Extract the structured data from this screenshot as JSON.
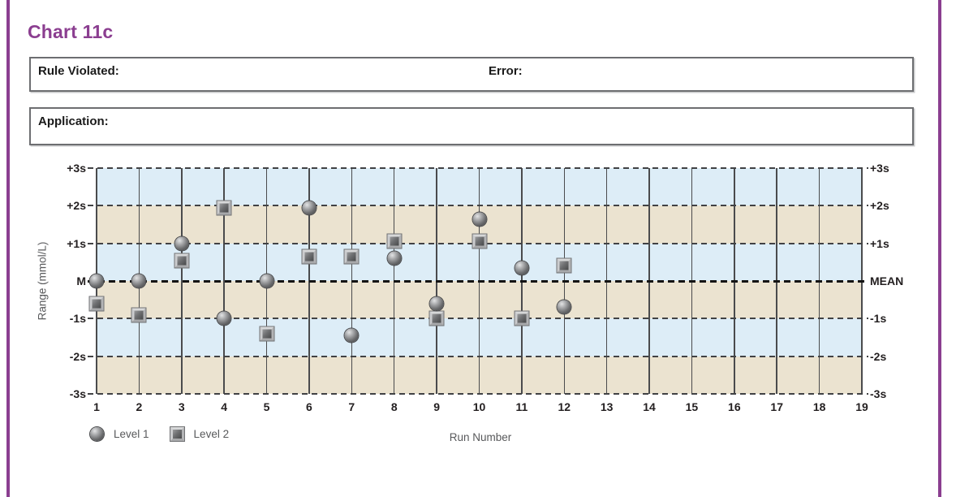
{
  "page_title": "Chart 11c",
  "colors": {
    "accent_purple": "#8b3e90",
    "band_blue": "#ddedf7",
    "band_beige": "#ebe3d0",
    "grid_line": "#4a4b4d",
    "dash_line": "#414244",
    "text_dark": "#231f20",
    "text_gray": "#58595b",
    "box_border": "#6d6e71"
  },
  "form": {
    "rule_violated_label": "Rule Violated:",
    "error_label": "Error:",
    "application_label": "Application:"
  },
  "chart_data": {
    "type": "scatter",
    "title": "Chart 11c",
    "xlabel": "Run Number",
    "ylabel": "Range (mmol/L)",
    "xlim": [
      1,
      19
    ],
    "ylim": [
      -3,
      3
    ],
    "x_ticks": [
      1,
      2,
      3,
      4,
      5,
      6,
      7,
      8,
      9,
      10,
      11,
      12,
      13,
      14,
      15,
      16,
      17,
      18,
      19
    ],
    "y_values": [
      3,
      2,
      1,
      0,
      -1,
      -2,
      -3
    ],
    "y_tick_labels_left": [
      "+3s",
      "+2s",
      "+1s",
      "M",
      "-1s",
      "-2s",
      "-3s"
    ],
    "y_tick_labels_right": [
      "+3s",
      "+2s",
      "+1s",
      "MEAN",
      "-1s",
      "-2s",
      "-3s"
    ],
    "mean_value": 0,
    "grid": "vertical-solid-per-run, horizontal-dashed-per-sigma",
    "background_bands": "alternating blue/beige per 1s, blue at +3s..+2s",
    "legend_position": "bottom-left",
    "series": [
      {
        "name": "Level 1",
        "marker": "circle",
        "points": [
          {
            "x": 1,
            "y": 0.0
          },
          {
            "x": 2,
            "y": 0.0
          },
          {
            "x": 3,
            "y": 1.0
          },
          {
            "x": 4,
            "y": -1.0
          },
          {
            "x": 5,
            "y": 0.0
          },
          {
            "x": 6,
            "y": 1.95
          },
          {
            "x": 7,
            "y": -1.45
          },
          {
            "x": 8,
            "y": 0.6
          },
          {
            "x": 9,
            "y": -0.6
          },
          {
            "x": 10,
            "y": 1.65
          },
          {
            "x": 11,
            "y": 0.35
          },
          {
            "x": 12,
            "y": -0.7
          }
        ]
      },
      {
        "name": "Level 2",
        "marker": "square",
        "points": [
          {
            "x": 1,
            "y": -0.6
          },
          {
            "x": 2,
            "y": -0.9
          },
          {
            "x": 3,
            "y": 0.55
          },
          {
            "x": 4,
            "y": 1.95
          },
          {
            "x": 5,
            "y": -1.4
          },
          {
            "x": 6,
            "y": 0.65
          },
          {
            "x": 7,
            "y": 0.65
          },
          {
            "x": 8,
            "y": 1.05
          },
          {
            "x": 9,
            "y": -1.0
          },
          {
            "x": 10,
            "y": 1.05
          },
          {
            "x": 11,
            "y": -1.0
          },
          {
            "x": 12,
            "y": 0.4
          }
        ]
      }
    ]
  }
}
